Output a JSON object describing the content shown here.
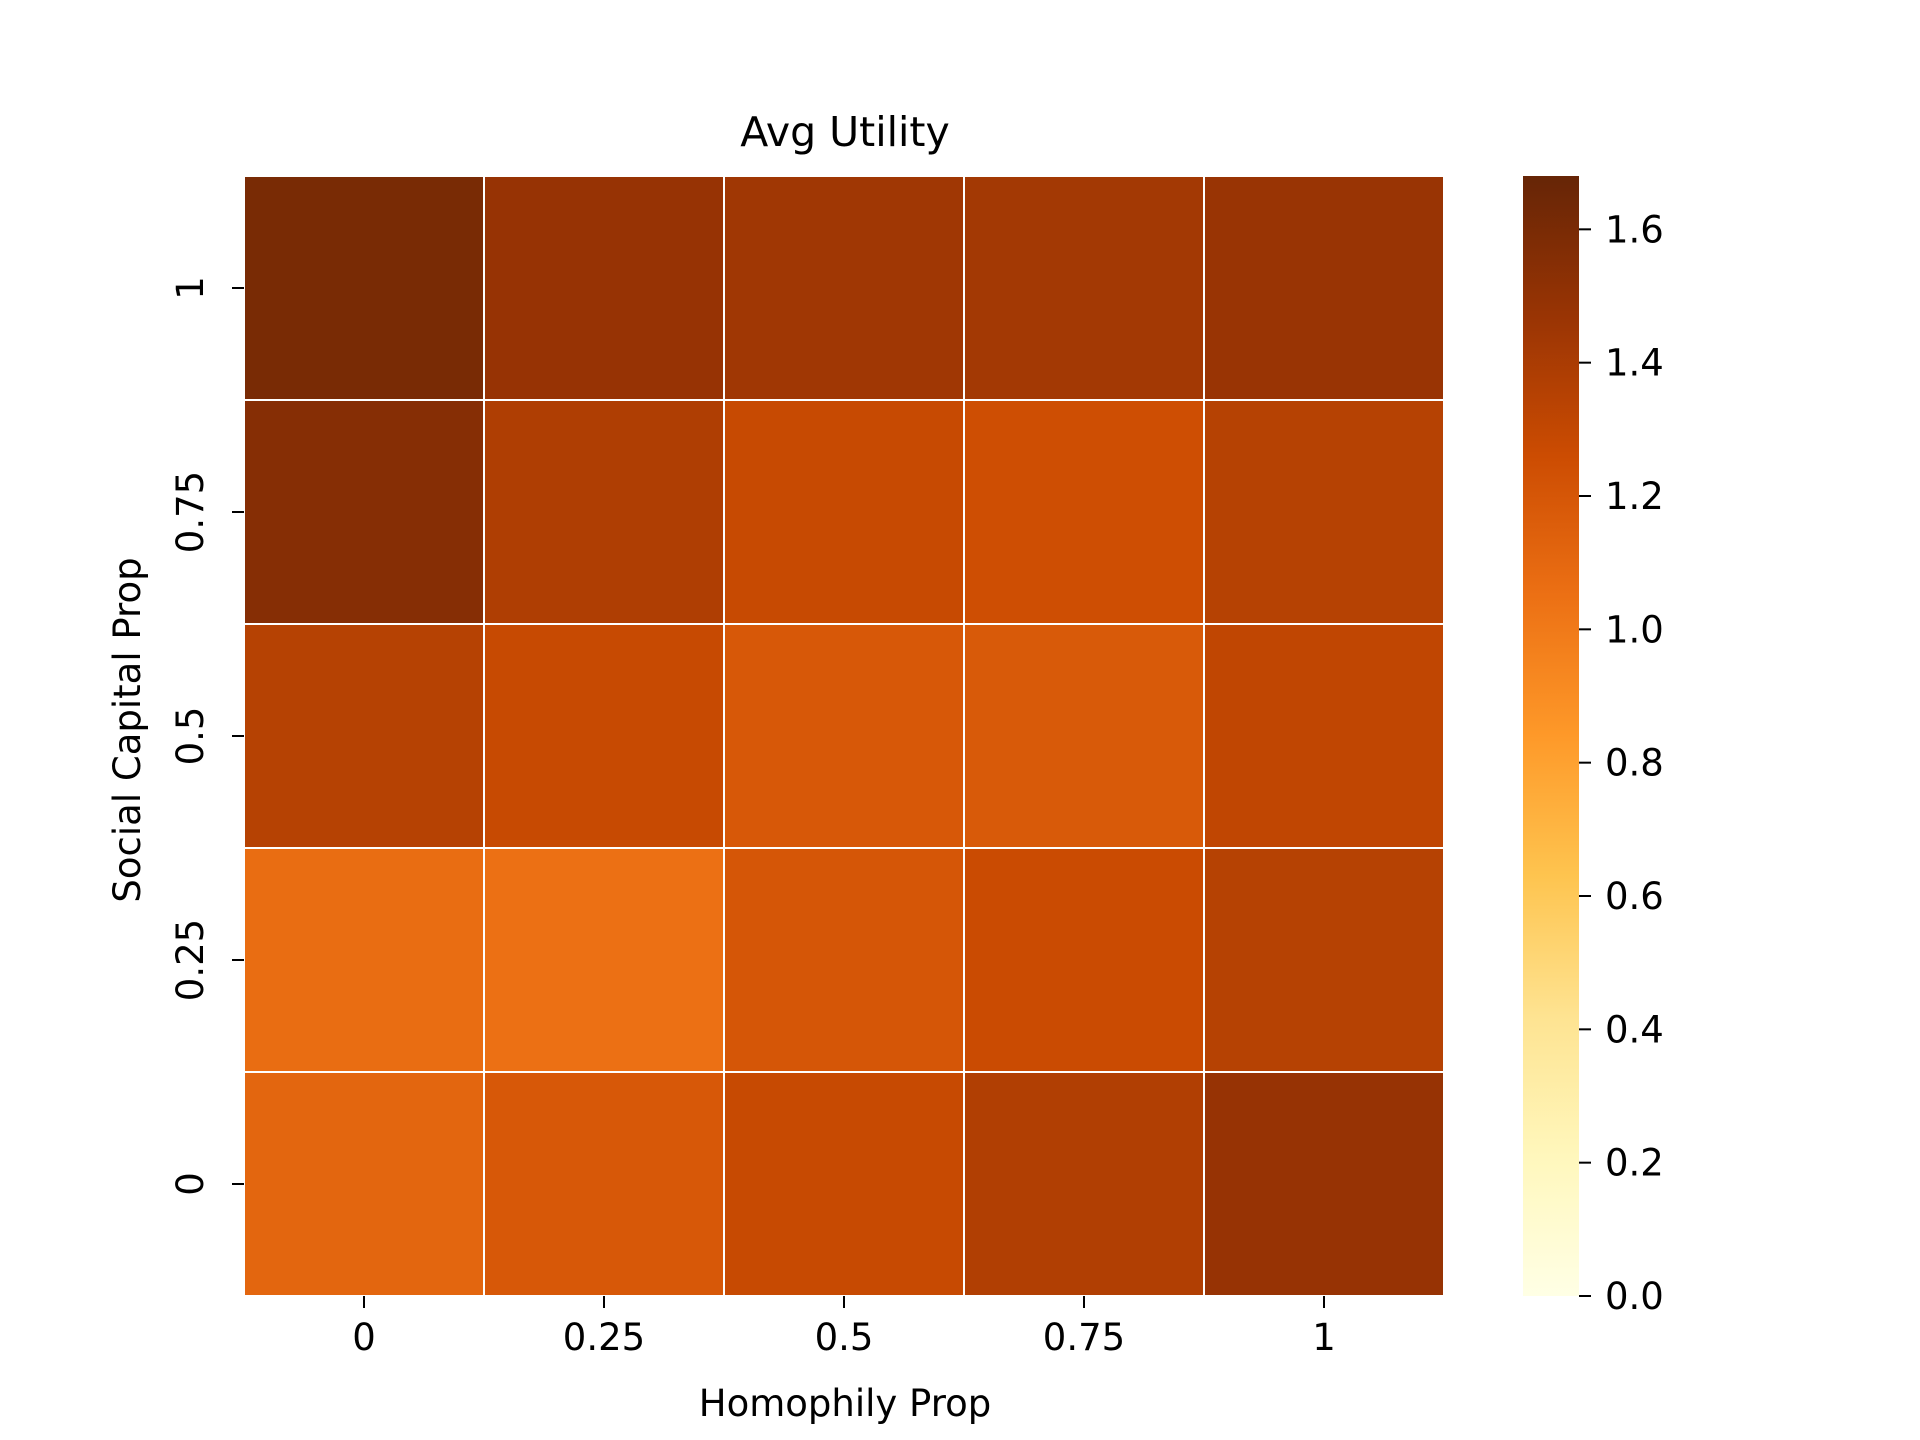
{
  "chart_data": {
    "type": "heatmap",
    "title": "Avg Utility",
    "xlabel": "Homophily Prop",
    "ylabel": "Social Capital Prop",
    "x_categories": [
      "0",
      "0.25",
      "0.5",
      "0.75",
      "1"
    ],
    "y_categories": [
      "1",
      "0.75",
      "0.5",
      "0.25",
      "0"
    ],
    "values": [
      [
        1.6,
        1.48,
        1.44,
        1.43,
        1.47
      ],
      [
        1.55,
        1.38,
        1.28,
        1.25,
        1.35
      ],
      [
        1.35,
        1.28,
        1.19,
        1.18,
        1.31
      ],
      [
        1.07,
        1.05,
        1.2,
        1.27,
        1.35
      ],
      [
        1.11,
        1.19,
        1.28,
        1.37,
        1.48
      ]
    ],
    "colorbar": {
      "colormap": "YlOrBr",
      "vmin": 0.0,
      "vmax": 1.68,
      "ticks": [
        "0.0",
        "0.2",
        "0.4",
        "0.6",
        "0.8",
        "1.0",
        "1.2",
        "1.4",
        "1.6"
      ]
    },
    "grid": true,
    "legend": "colorbar-right"
  }
}
